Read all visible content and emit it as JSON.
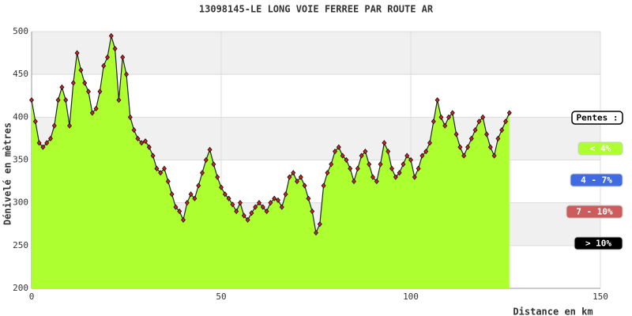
{
  "chart_data": {
    "type": "area",
    "title": "13098145-LE LONG VOIE FERREE PAR ROUTE AR",
    "x_label": "Distance en km",
    "y_label": "Dénivelé en mètres",
    "xlim": [
      0,
      150
    ],
    "xticks": [
      0,
      50,
      100,
      150
    ],
    "ylim": [
      200,
      500
    ],
    "yticks": [
      200,
      250,
      300,
      350,
      400,
      450,
      500
    ],
    "grid": true,
    "fill_color": "#adff2f",
    "line_color": "#222222",
    "marker_color": "#cc2222",
    "legend_title": "Pentes :",
    "legend": [
      {
        "label": "< 4%",
        "color": "#adff2f"
      },
      {
        "label": "4 - 7%",
        "color": "#4169e1"
      },
      {
        "label": "7 - 10%",
        "color": "#cd5c5c"
      },
      {
        "label": "> 10%",
        "color": "#000000"
      }
    ],
    "x": [
      0,
      1,
      2,
      3,
      4,
      5,
      6,
      7,
      8,
      9,
      10,
      11,
      12,
      13,
      14,
      15,
      16,
      17,
      18,
      19,
      20,
      21,
      22,
      23,
      24,
      25,
      26,
      27,
      28,
      29,
      30,
      31,
      32,
      33,
      34,
      35,
      36,
      37,
      38,
      39,
      40,
      41,
      42,
      43,
      44,
      45,
      46,
      47,
      48,
      49,
      50,
      51,
      52,
      53,
      54,
      55,
      56,
      57,
      58,
      59,
      60,
      61,
      62,
      63,
      64,
      65,
      66,
      67,
      68,
      69,
      70,
      71,
      72,
      73,
      74,
      75,
      76,
      77,
      78,
      79,
      80,
      81,
      82,
      83,
      84,
      85,
      86,
      87,
      88,
      89,
      90,
      91,
      92,
      93,
      94,
      95,
      96,
      97,
      98,
      99,
      100,
      101,
      102,
      103,
      104,
      105,
      106,
      107,
      108,
      109,
      110,
      111,
      112,
      113,
      114,
      115,
      116,
      117,
      118,
      119,
      120,
      121,
      122,
      123,
      124,
      125,
      126
    ],
    "values": [
      420,
      395,
      370,
      365,
      370,
      375,
      390,
      420,
      435,
      420,
      390,
      440,
      475,
      455,
      440,
      430,
      405,
      410,
      430,
      460,
      470,
      495,
      480,
      420,
      470,
      450,
      400,
      385,
      375,
      370,
      372,
      365,
      355,
      340,
      335,
      340,
      325,
      310,
      295,
      290,
      280,
      300,
      310,
      305,
      320,
      335,
      350,
      362,
      345,
      330,
      318,
      310,
      305,
      298,
      290,
      300,
      285,
      280,
      288,
      295,
      300,
      295,
      290,
      300,
      305,
      303,
      295,
      310,
      330,
      335,
      325,
      330,
      320,
      305,
      290,
      265,
      275,
      320,
      335,
      345,
      360,
      365,
      355,
      350,
      340,
      325,
      340,
      355,
      360,
      345,
      330,
      325,
      345,
      370,
      360,
      340,
      330,
      335,
      345,
      355,
      350,
      330,
      340,
      355,
      360,
      370,
      395,
      420,
      400,
      390,
      400,
      405,
      380,
      365,
      355,
      365,
      375,
      385,
      395,
      400,
      380,
      365,
      355,
      375,
      385,
      395,
      405
    ]
  }
}
